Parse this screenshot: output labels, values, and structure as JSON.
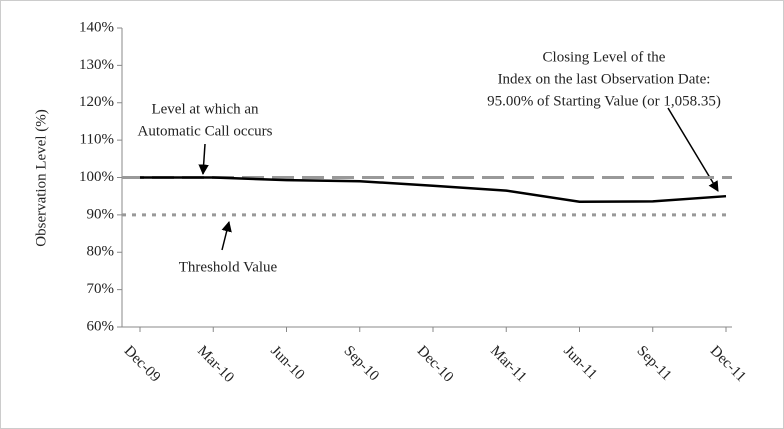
{
  "chart_data": {
    "type": "line",
    "y_label": "Observation Level (%)",
    "categories": [
      "Dec-09",
      "Mar-10",
      "Jun-10",
      "Sep-10",
      "Dec-10",
      "Mar-11",
      "Jun-11",
      "Sep-11",
      "Dec-11"
    ],
    "series": [
      {
        "name": "Index",
        "color": "#000000",
        "values": [
          100,
          100,
          99.3,
          99,
          97.8,
          96.5,
          93.5,
          93.6,
          95
        ]
      }
    ],
    "ylim": [
      60,
      140
    ],
    "yticks": [
      {
        "value": 60,
        "label": "60%"
      },
      {
        "value": 70,
        "label": "70%"
      },
      {
        "value": 80,
        "label": "80%"
      },
      {
        "value": 90,
        "label": "90%"
      },
      {
        "value": 100,
        "label": "100%"
      },
      {
        "value": 110,
        "label": "110%"
      },
      {
        "value": 120,
        "label": "120%"
      },
      {
        "value": 130,
        "label": "130%"
      },
      {
        "value": 140,
        "label": "140%"
      }
    ],
    "reference_lines": [
      {
        "value": 100,
        "style": "dashed",
        "color": "#999999"
      },
      {
        "value": 90,
        "style": "dotted",
        "color": "#999999"
      }
    ],
    "annotations": [
      {
        "lines": [
          "Level at which an",
          "Automatic Call occurs"
        ]
      },
      {
        "lines": [
          "Threshold Value"
        ]
      },
      {
        "lines": [
          "Closing Level of the",
          "Index on the last Observation Date:",
          "95.00% of Starting Value (or 1,058.35)"
        ]
      }
    ]
  }
}
